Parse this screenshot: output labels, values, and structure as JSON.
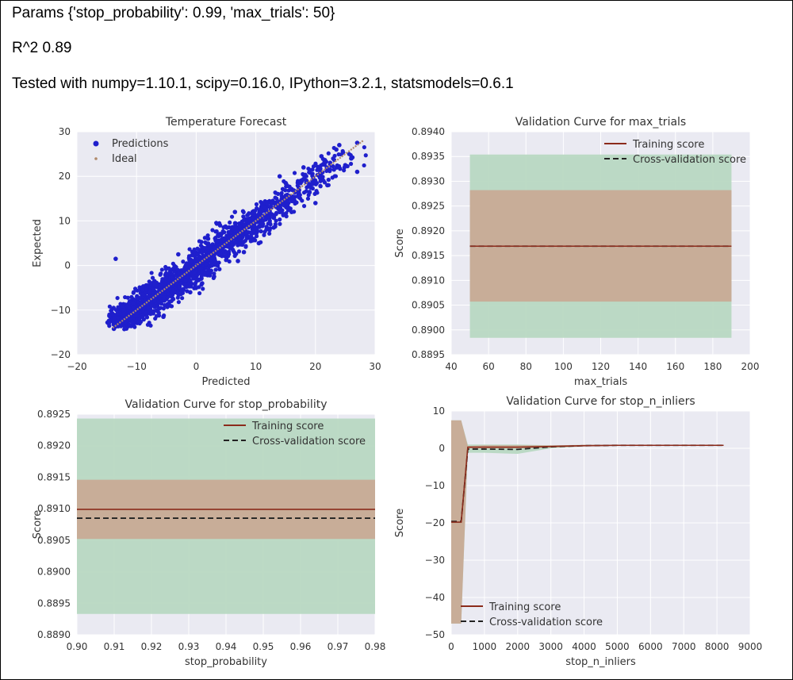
{
  "header": {
    "params": "Params {'stop_probability': 0.99, 'max_trials': 50}",
    "r2": "R^2 0.89",
    "tested": "Tested with numpy=1.10.1, scipy=0.16.0, IPython=3.2.1, statsmodels=0.6.1"
  },
  "colors": {
    "panel_bg": "#eaeaf2",
    "grid": "#ffffff",
    "predictions": "#1f1fcc",
    "ideal": "#b0896a",
    "training_line": "#8b2b1b",
    "cv_line": "#222222",
    "train_band": "#c8ab96",
    "cv_band": "#b8d8c2"
  },
  "chart_data": [
    {
      "type": "scatter",
      "title": "Temperature Forecast",
      "xlabel": "Predicted",
      "ylabel": "Expected",
      "xlim": [
        -20,
        30
      ],
      "ylim": [
        -20,
        30
      ],
      "xticks": [
        "−20",
        "−10",
        "0",
        "10",
        "20",
        "30"
      ],
      "yticks": [
        "−20",
        "−10",
        "0",
        "10",
        "20",
        "30"
      ],
      "grid": true,
      "legend": {
        "placement": "top-left",
        "entries": [
          "Predictions",
          "Ideal"
        ]
      },
      "series": [
        {
          "name": "Predictions",
          "style": "dense point cloud around the ideal line",
          "points": [
            [
              -13.8,
              -14.2
            ],
            [
              -12.5,
              -12.0
            ],
            [
              -10.5,
              -9.5
            ],
            [
              -13.5,
              1.5
            ],
            [
              -8.5,
              -8.0
            ],
            [
              -7.0,
              -3.5
            ],
            [
              -5.5,
              -11.5
            ],
            [
              -4.0,
              -4.5
            ],
            [
              -6.5,
              -6.0
            ],
            [
              -2.0,
              -1.0
            ],
            [
              -1.0,
              -6.0
            ],
            [
              0.5,
              2.0
            ],
            [
              2.0,
              6.0
            ],
            [
              3.0,
              -2.5
            ],
            [
              5.0,
              5.0
            ],
            [
              6.5,
              12.0
            ],
            [
              7.0,
              1.0
            ],
            [
              9.0,
              10.5
            ],
            [
              10.5,
              5.0
            ],
            [
              12.0,
              14.0
            ],
            [
              13.0,
              8.5
            ],
            [
              15.0,
              18.5
            ],
            [
              16.0,
              12.0
            ],
            [
              18.0,
              22.0
            ],
            [
              19.0,
              16.5
            ],
            [
              21.0,
              24.5
            ],
            [
              22.0,
              18.0
            ],
            [
              23.5,
              26.0
            ],
            [
              25.0,
              22.5
            ],
            [
              27.0,
              27.5
            ],
            [
              27.0,
              21.0
            ],
            [
              24.0,
              27.0
            ],
            [
              26.0,
              24.0
            ],
            [
              -3.0,
              2.5
            ],
            [
              1.0,
              -4.0
            ],
            [
              8.0,
              3.0
            ],
            [
              14.0,
              20.0
            ],
            [
              20.0,
              14.0
            ],
            [
              -9.0,
              -5.0
            ],
            [
              4.0,
              9.0
            ]
          ]
        },
        {
          "name": "Ideal",
          "x": [
            -14,
            28
          ],
          "y": [
            -14,
            28
          ]
        }
      ]
    },
    {
      "type": "line",
      "title": "Validation Curve for max_trials",
      "xlabel": "max_trials",
      "ylabel": "Score",
      "xlim": [
        40,
        200
      ],
      "ylim": [
        0.8895,
        0.894
      ],
      "xticks": [
        "40",
        "60",
        "80",
        "100",
        "120",
        "140",
        "160",
        "180",
        "200"
      ],
      "yticks": [
        "0.8895",
        "0.8900",
        "0.8905",
        "0.8910",
        "0.8915",
        "0.8920",
        "0.8925",
        "0.8930",
        "0.8935",
        "0.8940"
      ],
      "grid": true,
      "legend": {
        "placement": "top-right",
        "entries": [
          "Training score",
          "Cross-validation score"
        ]
      },
      "x": [
        50,
        190
      ],
      "series": [
        {
          "name": "Training score",
          "values": [
            0.89169,
            0.89169
          ],
          "band": [
            0.89057,
            0.89282
          ]
        },
        {
          "name": "Cross-validation score",
          "values": [
            0.89169,
            0.89169
          ],
          "band": [
            0.88984,
            0.89354
          ]
        }
      ]
    },
    {
      "type": "line",
      "title": "Validation Curve for stop_probability",
      "xlabel": "stop_probability",
      "ylabel": "Score",
      "xlim": [
        0.9,
        0.98
      ],
      "ylim": [
        0.889,
        0.8925
      ],
      "xticks": [
        "0.90",
        "0.91",
        "0.92",
        "0.93",
        "0.94",
        "0.95",
        "0.96",
        "0.97",
        "0.98"
      ],
      "yticks": [
        "0.8890",
        "0.8895",
        "0.8900",
        "0.8905",
        "0.8910",
        "0.8915",
        "0.8920",
        "0.8925"
      ],
      "grid": true,
      "legend": {
        "placement": "top-right",
        "entries": [
          "Training score",
          "Cross-validation score"
        ]
      },
      "x": [
        0.9,
        0.98
      ],
      "series": [
        {
          "name": "Training score",
          "values": [
            0.89099,
            0.89099
          ],
          "band": [
            0.89052,
            0.89146
          ]
        },
        {
          "name": "Cross-validation score",
          "values": [
            0.89085,
            0.89085
          ],
          "band": [
            0.88933,
            0.89243
          ]
        }
      ]
    },
    {
      "type": "line",
      "title": "Validation Curve for stop_n_inliers",
      "xlabel": "stop_n_inliers",
      "ylabel": "Score",
      "xlim": [
        0,
        9000
      ],
      "ylim": [
        -50,
        10
      ],
      "xticks": [
        "0",
        "1000",
        "2000",
        "3000",
        "4000",
        "5000",
        "6000",
        "7000",
        "8000",
        "9000"
      ],
      "yticks": [
        "−50",
        "−40",
        "−30",
        "−20",
        "−10",
        "0",
        "10"
      ],
      "grid": true,
      "legend": {
        "placement": "bottom-left",
        "entries": [
          "Training score",
          "Cross-validation score"
        ]
      },
      "x": [
        0,
        300,
        500,
        1000,
        2000,
        3000,
        4000,
        5000,
        6000,
        7000,
        8200
      ],
      "series": [
        {
          "name": "Training score",
          "values": [
            -19.8,
            -19.8,
            0.3,
            0.3,
            0.3,
            0.5,
            0.7,
            0.8,
            0.8,
            0.8,
            0.8
          ],
          "band_low": [
            -47,
            -47,
            0.0,
            0.0,
            0.0,
            0.2,
            0.5,
            0.7,
            0.7,
            0.7,
            0.7
          ],
          "band_high": [
            7.5,
            7.5,
            0.6,
            0.8,
            0.8,
            0.8,
            0.9,
            0.9,
            0.9,
            0.9,
            0.9
          ]
        },
        {
          "name": "Cross-validation score",
          "values": [
            -19.6,
            -19.6,
            -0.2,
            -0.2,
            -0.3,
            0.4,
            0.7,
            0.8,
            0.8,
            0.8,
            0.8
          ],
          "band_low": [
            -47,
            -47,
            -1.2,
            -1.2,
            -1.5,
            0.0,
            0.5,
            0.7,
            0.7,
            0.7,
            0.7
          ],
          "band_high": [
            7.5,
            7.5,
            1.0,
            1.0,
            1.0,
            0.8,
            0.9,
            0.9,
            0.9,
            0.9,
            0.9
          ]
        }
      ]
    }
  ]
}
